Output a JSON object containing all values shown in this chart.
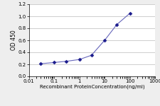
{
  "x": [
    0.03,
    0.1,
    0.3,
    1,
    3,
    10,
    30,
    100
  ],
  "y": [
    0.21,
    0.23,
    0.25,
    0.28,
    0.35,
    0.6,
    0.86,
    1.05
  ],
  "line_color": "#6666bb",
  "marker_color": "#1a1a8c",
  "marker": "D",
  "marker_size": 2.5,
  "line_width": 0.8,
  "xlabel": "Recombinant ProteinConcentration(ng/ml)",
  "ylabel": "OD 450",
  "xlim": [
    0.01,
    1000
  ],
  "ylim": [
    0,
    1.2
  ],
  "yticks": [
    0,
    0.2,
    0.4,
    0.6,
    0.8,
    1.0,
    1.2
  ],
  "xticks": [
    0.01,
    0.1,
    1,
    10,
    100,
    1000
  ],
  "xtick_labels": [
    "0.01",
    "0.1",
    "1",
    "10",
    "100",
    "1000"
  ],
  "background_color": "#eeeeee",
  "plot_bg_color": "#ffffff",
  "grid_color": "#bbbbbb",
  "xlabel_fontsize": 5.0,
  "ylabel_fontsize": 5.5,
  "tick_fontsize": 5.0
}
